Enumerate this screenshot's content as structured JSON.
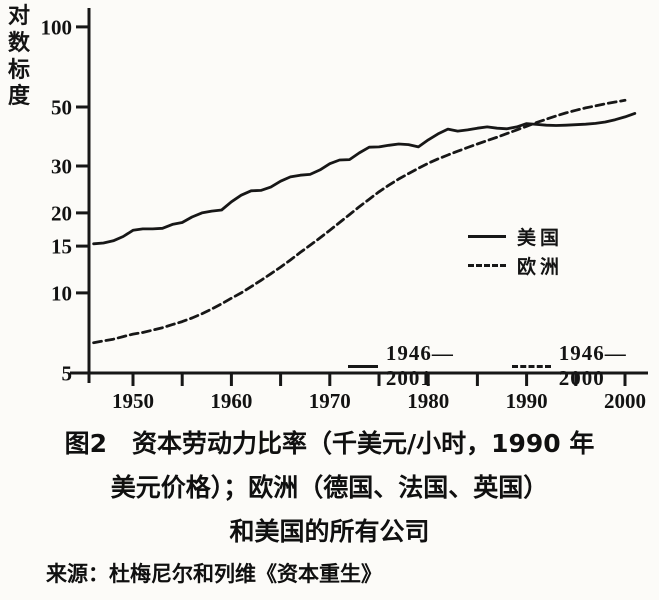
{
  "figure": {
    "y_axis_title": "对数标度",
    "caption_line1": "图2　资本劳动力比率（千美元/小时，1990 年",
    "caption_line2": "美元价格）；欧洲（德国、法国、英国）",
    "caption_line3": "和美国的所有公司",
    "source": "来源：杜梅尼尔和列维《资本重生》",
    "legend_us_label": "美国",
    "legend_europe_label": "欧洲",
    "legend_us_range": "1946—2001",
    "legend_europe_range": "1946—2000",
    "line_color": "#171717",
    "background_color": "#fcfbf8"
  },
  "chart_data": {
    "type": "line",
    "title": "图2 资本劳动力比率（千美元/小时，1990 年美元价格）；欧洲（德国、法国、英国）和美国的所有公司",
    "source": "来源：杜梅尼尔和列维《资本重生》",
    "xlabel": "",
    "ylabel": "对数标度",
    "y_scale": "log",
    "ylim": [
      5,
      110
    ],
    "xlim": [
      1946,
      2001
    ],
    "grid": false,
    "legend_position": "inside-right",
    "y_ticks": [
      5,
      10,
      15,
      20,
      30,
      50,
      100
    ],
    "x_ticks": [
      1950,
      1955,
      1960,
      1965,
      1970,
      1975,
      1980,
      1985,
      1990,
      1995,
      2000
    ],
    "x_tick_labels": [
      1950,
      1960,
      1970,
      1980,
      1990,
      2000
    ],
    "series": [
      {
        "name": "美国",
        "range_label": "1946—2001",
        "style": "solid",
        "start_year": 1946,
        "end_year": 2001,
        "values": [
          15.3,
          15.4,
          15.7,
          16.3,
          17.2,
          17.4,
          17.4,
          17.5,
          18.1,
          18.4,
          19.3,
          20.0,
          20.3,
          20.5,
          22.0,
          23.3,
          24.2,
          24.3,
          25.0,
          26.3,
          27.3,
          27.7,
          27.9,
          29.0,
          30.6,
          31.6,
          31.7,
          33.6,
          35.3,
          35.4,
          35.9,
          36.3,
          36.1,
          35.4,
          37.6,
          39.6,
          41.3,
          40.6,
          41.0,
          41.6,
          42.1,
          41.6,
          41.4,
          42.1,
          43.3,
          43.0,
          42.7,
          42.6,
          42.7,
          42.9,
          43.1,
          43.4,
          43.9,
          44.8,
          45.9,
          47.3
        ]
      },
      {
        "name": "欧洲",
        "range_label": "1946—2000",
        "style": "dashed",
        "start_year": 1946,
        "end_year": 2000,
        "values": [
          6.5,
          6.6,
          6.7,
          6.85,
          7.0,
          7.1,
          7.25,
          7.4,
          7.6,
          7.8,
          8.05,
          8.35,
          8.7,
          9.1,
          9.55,
          10.0,
          10.55,
          11.15,
          11.8,
          12.5,
          13.3,
          14.2,
          15.1,
          16.1,
          17.2,
          18.4,
          19.7,
          21.1,
          22.5,
          24.0,
          25.4,
          26.8,
          28.1,
          29.4,
          30.7,
          31.9,
          33.0,
          34.1,
          35.2,
          36.3,
          37.4,
          38.5,
          39.7,
          41.0,
          42.3,
          43.7,
          45.0,
          46.3,
          47.5,
          48.6,
          49.6,
          50.5,
          51.4,
          52.2,
          53.0
        ]
      }
    ]
  }
}
